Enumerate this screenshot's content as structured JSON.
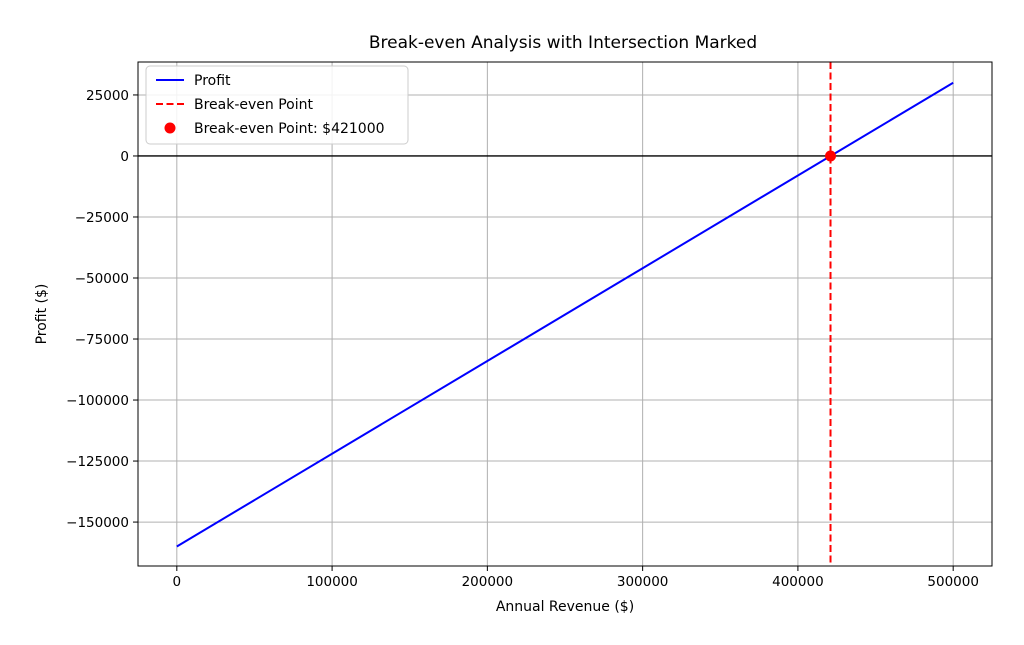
{
  "chart_data": {
    "type": "line",
    "title": "Break-even Analysis with Intersection Marked",
    "xlabel": "Annual Revenue ($)",
    "ylabel": "Profit ($)",
    "xlim": [
      -25000,
      525000
    ],
    "ylim": [
      -168000,
      38500
    ],
    "xticks": [
      0,
      100000,
      200000,
      300000,
      400000,
      500000
    ],
    "xtick_labels": [
      "0",
      "100000",
      "200000",
      "300000",
      "400000",
      "500000"
    ],
    "yticks": [
      25000,
      0,
      -25000,
      -50000,
      -75000,
      -100000,
      -125000,
      -150000
    ],
    "ytick_labels": [
      "25000",
      "0",
      "−25000",
      "−50000",
      "−75000",
      "−100000",
      "−125000",
      "−150000"
    ],
    "grid": true,
    "legend_position": "top-left",
    "series": [
      {
        "name": "Profit",
        "style": "solid",
        "color": "#0000ff",
        "x": [
          0,
          500000
        ],
        "y": [
          -160000,
          30000
        ]
      }
    ],
    "hlines": [
      {
        "y": 0,
        "color": "#000000"
      }
    ],
    "vlines": [
      {
        "name": "Break-even Point",
        "x": 421000,
        "color": "#ff0000",
        "style": "dashed"
      }
    ],
    "points": [
      {
        "name": "Break-even Point: $421000",
        "x": 421000,
        "y": 0,
        "color": "#ff0000"
      }
    ],
    "legend": [
      {
        "label": "Profit",
        "kind": "line",
        "color": "#0000ff"
      },
      {
        "label": "Break-even Point",
        "kind": "dashed",
        "color": "#ff0000"
      },
      {
        "label": "Break-even Point: $421000",
        "kind": "marker",
        "color": "#ff0000"
      }
    ]
  }
}
